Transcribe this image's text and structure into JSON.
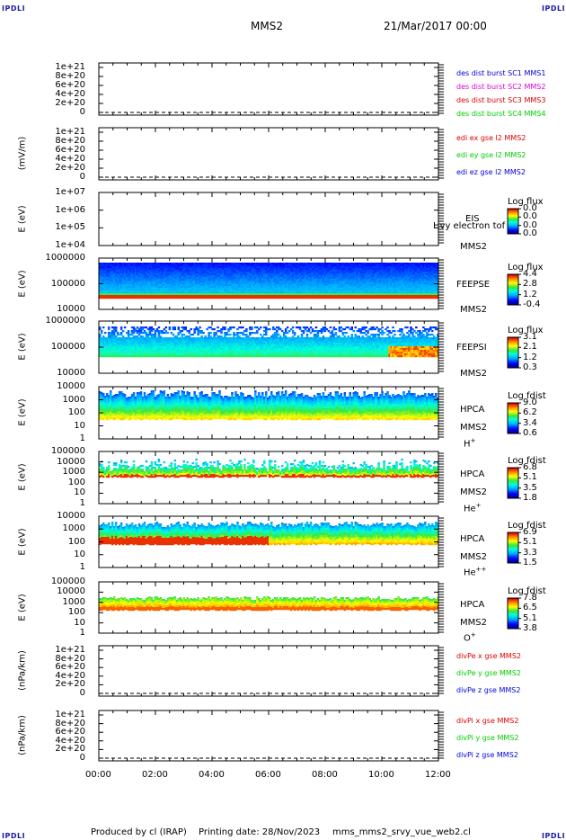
{
  "corner_label": "IPDLI",
  "header": {
    "spacecraft": "MMS2",
    "datetime": "21/Mar/2017 00:00"
  },
  "footer": {
    "produced": "Produced by cl (IRAP)",
    "printing": "Printing date: 28/Nov/2023",
    "file": "mms_mms2_srvy_vue_web2.cl"
  },
  "colors": {
    "dashed": "#000000",
    "blue": "#0000dd",
    "magenta": "#dd00dd",
    "red": "#dd0000",
    "green": "#00cc00"
  },
  "chart_data": [
    {
      "type": "line",
      "id": "des",
      "ylabel": "",
      "yticks": [
        "1e+21",
        "8e+20",
        "6e+20",
        "4e+20",
        "2e+20",
        "0"
      ],
      "ylim": [
        0,
        1e+21
      ],
      "legend": [
        {
          "text": "des dist burst SC1 MMS1",
          "color": "#0000dd"
        },
        {
          "text": "des dist burst SC2 MMS2",
          "color": "#dd00dd"
        },
        {
          "text": "des dist burst SC3 MMS3",
          "color": "#dd0000"
        },
        {
          "text": "des dist burst SC4 MMS4",
          "color": "#00cc00"
        }
      ]
    },
    {
      "type": "line",
      "id": "edi",
      "ylabel": "(mV/m)",
      "yticks": [
        "1e+21",
        "8e+20",
        "6e+20",
        "4e+20",
        "2e+20",
        "0"
      ],
      "ylim": [
        0,
        1e+21
      ],
      "legend": [
        {
          "text": "edi ex gse l2 MMS2",
          "color": "#dd0000"
        },
        {
          "text": "edi ey gse l2 MMS2",
          "color": "#00cc00"
        },
        {
          "text": "edi ez gse l2 MMS2",
          "color": "#0000dd"
        }
      ]
    },
    {
      "type": "heatmap",
      "id": "eis",
      "ylabel": "E (eV)",
      "yticks": [
        "1e+07",
        "1e+06",
        "1e+05",
        "1e+04"
      ],
      "labels": [
        "EIS",
        "Hvy electron tof",
        "MMS2"
      ],
      "colorbar": {
        "title": "Log flux",
        "values": [
          "0.0",
          "0.0",
          "0.0",
          "0.0"
        ]
      }
    },
    {
      "type": "heatmap",
      "id": "feepse",
      "ylabel": "E (eV)",
      "yticks": [
        "1000000",
        "100000",
        "10000"
      ],
      "labels": [
        "FEEPSE",
        "MMS2"
      ],
      "colorbar": {
        "title": "Log flux",
        "values": [
          "4.4",
          "2.8",
          "1.2",
          "-0.4"
        ]
      }
    },
    {
      "type": "heatmap",
      "id": "feepsi",
      "ylabel": "E (eV)",
      "yticks": [
        "1000000",
        "100000",
        "10000"
      ],
      "labels": [
        "FEEPSI",
        "MMS2"
      ],
      "colorbar": {
        "title": "Log flux",
        "values": [
          "3.1",
          "2.1",
          "1.2",
          "0.3"
        ]
      }
    },
    {
      "type": "heatmap",
      "id": "hpca_h",
      "ylabel": "E (eV)",
      "yticks": [
        "10000",
        "1000",
        "100",
        "10",
        "1"
      ],
      "labels": [
        "HPCA",
        "MMS2",
        "H+"
      ],
      "colorbar": {
        "title": "Log fdist",
        "values": [
          "9.0",
          "6.2",
          "3.4",
          "0.6"
        ]
      }
    },
    {
      "type": "heatmap",
      "id": "hpca_he",
      "ylabel": "E (eV)",
      "yticks": [
        "100000",
        "10000",
        "1000",
        "100",
        "10",
        "1"
      ],
      "labels": [
        "HPCA",
        "MMS2",
        "He+"
      ],
      "colorbar": {
        "title": "Log fdist",
        "values": [
          "6.8",
          "5.1",
          "3.5",
          "1.8"
        ]
      }
    },
    {
      "type": "heatmap",
      "id": "hpca_hepp",
      "ylabel": "E (eV)",
      "yticks": [
        "10000",
        "1000",
        "100",
        "10",
        "1"
      ],
      "labels": [
        "HPCA",
        "MMS2",
        "He++"
      ],
      "colorbar": {
        "title": "Log fdist",
        "values": [
          "6.9",
          "5.1",
          "3.3",
          "1.5"
        ]
      }
    },
    {
      "type": "heatmap",
      "id": "hpca_o",
      "ylabel": "E (eV)",
      "yticks": [
        "100000",
        "10000",
        "1000",
        "100",
        "10",
        "1"
      ],
      "labels": [
        "HPCA",
        "MMS2",
        "O+"
      ],
      "colorbar": {
        "title": "Log fdist",
        "values": [
          "7.8",
          "6.5",
          "5.1",
          "3.8"
        ]
      }
    },
    {
      "type": "line",
      "id": "divpe",
      "ylabel": "(nPa/km)",
      "yticks": [
        "1e+21",
        "8e+20",
        "6e+20",
        "4e+20",
        "2e+20",
        "0"
      ],
      "ylim": [
        0,
        1e+21
      ],
      "legend": [
        {
          "text": "divPe x gse MMS2",
          "color": "#dd0000"
        },
        {
          "text": "divPe y gse MMS2",
          "color": "#00cc00"
        },
        {
          "text": "divPe z gse MMS2",
          "color": "#0000dd"
        }
      ]
    },
    {
      "type": "line",
      "id": "divpi",
      "ylabel": "(nPa/km)",
      "yticks": [
        "1e+21",
        "8e+20",
        "6e+20",
        "4e+20",
        "2e+20",
        "0"
      ],
      "ylim": [
        0,
        1e+21
      ],
      "legend": [
        {
          "text": "divPi x gse MMS2",
          "color": "#dd0000"
        },
        {
          "text": "divPi y gse MMS2",
          "color": "#00cc00"
        },
        {
          "text": "divPi z gse MMS2",
          "color": "#0000dd"
        }
      ]
    }
  ],
  "x_axis": {
    "ticks": [
      "00:00",
      "02:00",
      "04:00",
      "06:00",
      "08:00",
      "10:00",
      "12:00"
    ],
    "xlim": [
      "00:00",
      "12:00"
    ]
  }
}
